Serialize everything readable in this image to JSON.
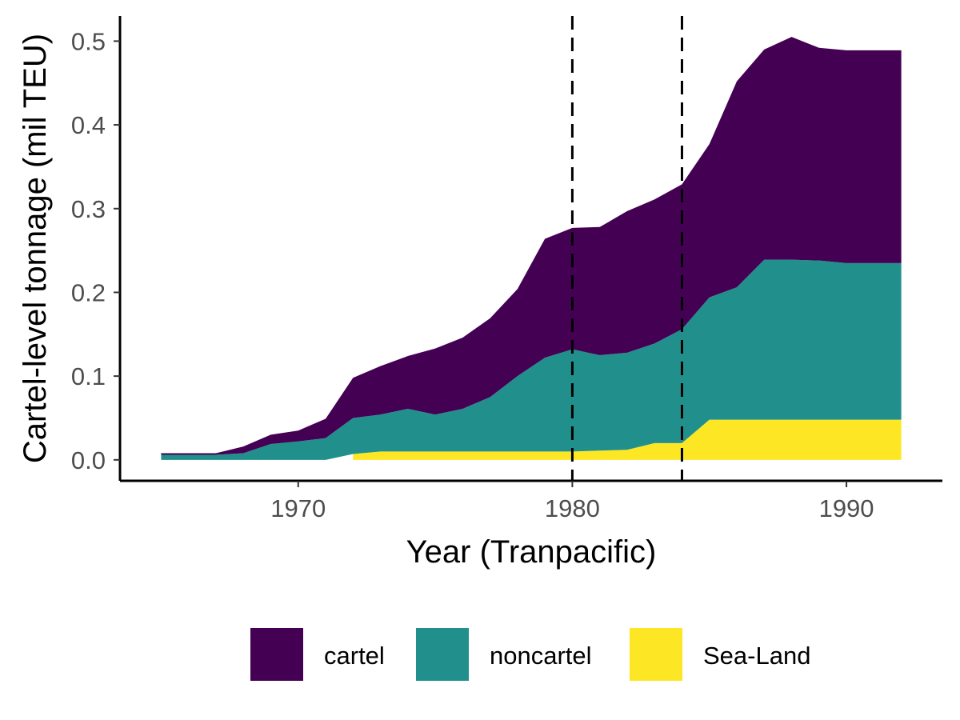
{
  "chart_data": {
    "type": "area",
    "stacked": true,
    "xlabel": "Year (Tranpacific)",
    "ylabel": "Cartel-level tonnage (mil TEU)",
    "xlim": [
      1963.5,
      1993.5
    ],
    "ylim": [
      -0.025,
      0.53
    ],
    "x_ticks": [
      1970,
      1980,
      1990
    ],
    "x_tick_labels": [
      "1970",
      "1980",
      "1990"
    ],
    "y_ticks": [
      0,
      0.1,
      0.2,
      0.3,
      0.4,
      0.5
    ],
    "y_tick_labels": [
      "0.0",
      "0.1",
      "0.2",
      "0.3",
      "0.4",
      "0.5"
    ],
    "grid": false,
    "legend_position": "bottom",
    "vlines": [
      {
        "x": 1980,
        "style": "dashed",
        "color": "#000000"
      },
      {
        "x": 1984,
        "style": "dashed",
        "color": "#000000"
      }
    ],
    "series": [
      {
        "name": "cartel",
        "color": "#440154",
        "x": [
          1965,
          1966,
          1967,
          1968,
          1969,
          1970,
          1971,
          1972,
          1973,
          1974,
          1975,
          1976,
          1977,
          1978,
          1979,
          1980,
          1981,
          1982,
          1983,
          1984,
          1985,
          1986,
          1987,
          1988,
          1989,
          1990,
          1991,
          1992
        ],
        "values": [
          0.002,
          0.002,
          0.002,
          0.008,
          0.011,
          0.013,
          0.023,
          0.048,
          0.058,
          0.063,
          0.079,
          0.085,
          0.094,
          0.104,
          0.142,
          0.145,
          0.153,
          0.169,
          0.172,
          0.173,
          0.183,
          0.246,
          0.251,
          0.266,
          0.254,
          0.254,
          0.254,
          0.254
        ]
      },
      {
        "name": "noncartel",
        "color": "#21908C",
        "x": [
          1965,
          1966,
          1967,
          1968,
          1969,
          1970,
          1971,
          1972,
          1973,
          1974,
          1975,
          1976,
          1977,
          1978,
          1979,
          1980,
          1981,
          1982,
          1983,
          1984,
          1985,
          1986,
          1987,
          1988,
          1989,
          1990,
          1991,
          1992
        ],
        "values": [
          0.006,
          0.006,
          0.006,
          0.008,
          0.019,
          0.022,
          0.026,
          0.043,
          0.044,
          0.051,
          0.044,
          0.051,
          0.065,
          0.09,
          0.112,
          0.122,
          0.114,
          0.116,
          0.119,
          0.136,
          0.146,
          0.158,
          0.191,
          0.191,
          0.19,
          0.187,
          0.187,
          0.187
        ]
      },
      {
        "name": "Sea-Land",
        "color": "#FDE725",
        "x": [
          1972,
          1973,
          1974,
          1975,
          1976,
          1977,
          1978,
          1979,
          1980,
          1981,
          1982,
          1983,
          1984,
          1985,
          1986,
          1987,
          1988,
          1989,
          1990,
          1991,
          1992
        ],
        "values": [
          0.007,
          0.01,
          0.01,
          0.01,
          0.01,
          0.01,
          0.01,
          0.01,
          0.01,
          0.011,
          0.012,
          0.02,
          0.02,
          0.048,
          0.048,
          0.048,
          0.048,
          0.048,
          0.048,
          0.048,
          0.048
        ]
      }
    ]
  }
}
